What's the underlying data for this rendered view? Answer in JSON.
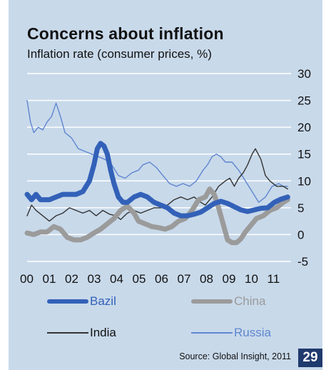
{
  "header": {
    "title": "Concerns about inflation",
    "subtitle": "Inflation rate (consumer prices, %)"
  },
  "footer": {
    "source": "Source: Global Insight, 2011",
    "page_number": "29"
  },
  "colors": {
    "background": "#c8d9ea",
    "gridline": "#ffffff",
    "brazil": "#3361b8",
    "china": "#9b9b9b",
    "india": "#333333",
    "russia": "#5f86cf",
    "page_badge": "#1f3a6d"
  },
  "chart_data": {
    "type": "line",
    "title": "Concerns about inflation",
    "subtitle": "Inflation rate (consumer prices, %)",
    "xlabel": "",
    "ylabel": "",
    "x_ticks": [
      "00",
      "01",
      "02",
      "03",
      "04",
      "05",
      "06",
      "07",
      "08",
      "09",
      "10",
      "11"
    ],
    "y_ticks": [
      30,
      25,
      20,
      15,
      10,
      5,
      0,
      -5
    ],
    "xlim": [
      2000,
      2011.85
    ],
    "ylim": [
      -5,
      30
    ],
    "grid": true,
    "legend": "bottom",
    "series": [
      {
        "name": "Bazil",
        "x": [
          2000.0,
          2000.2,
          2000.4,
          2000.6,
          2000.8,
          2001.0,
          2001.3,
          2001.6,
          2001.9,
          2002.2,
          2002.5,
          2002.8,
          2003.0,
          2003.15,
          2003.3,
          2003.45,
          2003.6,
          2003.75,
          2003.9,
          2004.1,
          2004.3,
          2004.5,
          2004.8,
          2005.1,
          2005.4,
          2005.7,
          2006.0,
          2006.3,
          2006.6,
          2006.9,
          2007.2,
          2007.5,
          2007.8,
          2008.1,
          2008.4,
          2008.7,
          2009.0,
          2009.3,
          2009.6,
          2009.9,
          2010.2,
          2010.5,
          2010.8,
          2011.1,
          2011.4,
          2011.7
        ],
        "y": [
          7.5,
          6.5,
          7.5,
          6.5,
          6.5,
          6.5,
          7.0,
          7.5,
          7.5,
          7.5,
          8.0,
          10.0,
          13.0,
          16.0,
          17.0,
          16.5,
          15.0,
          12.0,
          9.5,
          7.0,
          6.0,
          6.0,
          7.0,
          7.5,
          7.0,
          6.0,
          5.5,
          5.0,
          4.0,
          3.5,
          3.5,
          3.8,
          4.2,
          5.0,
          5.8,
          6.2,
          5.8,
          5.2,
          4.6,
          4.3,
          4.6,
          4.9,
          5.0,
          6.0,
          6.6,
          7.0
        ]
      },
      {
        "name": "China",
        "x": [
          2000.0,
          2000.3,
          2000.6,
          2000.9,
          2001.2,
          2001.5,
          2001.8,
          2002.1,
          2002.4,
          2002.7,
          2003.0,
          2003.3,
          2003.6,
          2003.9,
          2004.2,
          2004.5,
          2004.8,
          2005.0,
          2005.3,
          2005.6,
          2005.9,
          2006.2,
          2006.5,
          2006.8,
          2007.1,
          2007.4,
          2007.7,
          2008.0,
          2008.2,
          2008.4,
          2008.6,
          2008.8,
          2009.0,
          2009.2,
          2009.4,
          2009.6,
          2009.8,
          2010.0,
          2010.3,
          2010.6,
          2010.9,
          2011.2,
          2011.5,
          2011.7
        ],
        "y": [
          0.3,
          0.0,
          0.5,
          0.5,
          1.5,
          1.0,
          -0.5,
          -1.0,
          -1.0,
          -0.5,
          0.3,
          1.0,
          2.0,
          3.0,
          4.5,
          5.3,
          4.0,
          2.5,
          2.0,
          1.5,
          1.3,
          1.0,
          1.5,
          2.5,
          3.0,
          4.5,
          6.5,
          7.0,
          8.5,
          7.5,
          5.0,
          2.0,
          -1.0,
          -1.5,
          -1.5,
          -0.8,
          0.5,
          1.5,
          3.0,
          3.5,
          4.5,
          5.0,
          6.0,
          6.5
        ]
      },
      {
        "name": "India",
        "x": [
          2000.0,
          2000.2,
          2000.4,
          2000.7,
          2001.0,
          2001.3,
          2001.6,
          2001.9,
          2002.2,
          2002.5,
          2002.8,
          2003.1,
          2003.4,
          2003.7,
          2004.0,
          2004.2,
          2004.5,
          2004.8,
          2005.1,
          2005.4,
          2005.7,
          2006.0,
          2006.3,
          2006.6,
          2006.9,
          2007.2,
          2007.5,
          2007.8,
          2008.0,
          2008.3,
          2008.6,
          2008.9,
          2009.1,
          2009.3,
          2009.5,
          2009.7,
          2009.9,
          2010.1,
          2010.25,
          2010.5,
          2010.7,
          2010.9,
          2011.2,
          2011.5,
          2011.7
        ],
        "y": [
          3.5,
          5.5,
          4.5,
          3.5,
          2.5,
          3.5,
          4.0,
          5.0,
          4.5,
          4.0,
          4.5,
          3.5,
          4.5,
          3.8,
          3.5,
          2.8,
          4.0,
          4.5,
          4.0,
          4.5,
          5.0,
          5.0,
          5.5,
          6.5,
          7.0,
          6.5,
          7.0,
          6.0,
          5.5,
          7.0,
          9.0,
          10.0,
          10.5,
          9.0,
          10.5,
          11.5,
          13.0,
          15.0,
          16.0,
          14.0,
          11.0,
          10.0,
          9.0,
          9.0,
          8.5
        ]
      },
      {
        "name": "Russia",
        "x": [
          2000.0,
          2000.15,
          2000.3,
          2000.5,
          2000.7,
          2000.9,
          2001.1,
          2001.3,
          2001.5,
          2001.7,
          2002.0,
          2002.3,
          2002.6,
          2002.9,
          2003.2,
          2003.5,
          2003.8,
          2004.1,
          2004.4,
          2004.7,
          2005.0,
          2005.2,
          2005.5,
          2005.8,
          2006.1,
          2006.4,
          2006.7,
          2007.0,
          2007.3,
          2007.6,
          2007.9,
          2008.1,
          2008.3,
          2008.5,
          2008.7,
          2008.9,
          2009.2,
          2009.5,
          2009.8,
          2010.1,
          2010.4,
          2010.7,
          2011.0,
          2011.3,
          2011.5,
          2011.7
        ],
        "y": [
          25.0,
          21.0,
          19.0,
          20.0,
          19.5,
          21.0,
          22.0,
          24.5,
          22.0,
          19.0,
          18.0,
          16.0,
          15.5,
          15.0,
          14.5,
          14.0,
          13.0,
          11.0,
          10.5,
          11.5,
          12.0,
          13.0,
          13.5,
          12.5,
          11.0,
          9.5,
          9.0,
          9.5,
          9.0,
          10.0,
          12.0,
          13.0,
          14.5,
          15.0,
          14.5,
          13.5,
          13.5,
          12.0,
          10.0,
          8.0,
          6.0,
          7.0,
          9.0,
          9.5,
          9.0,
          9.0
        ]
      }
    ]
  }
}
